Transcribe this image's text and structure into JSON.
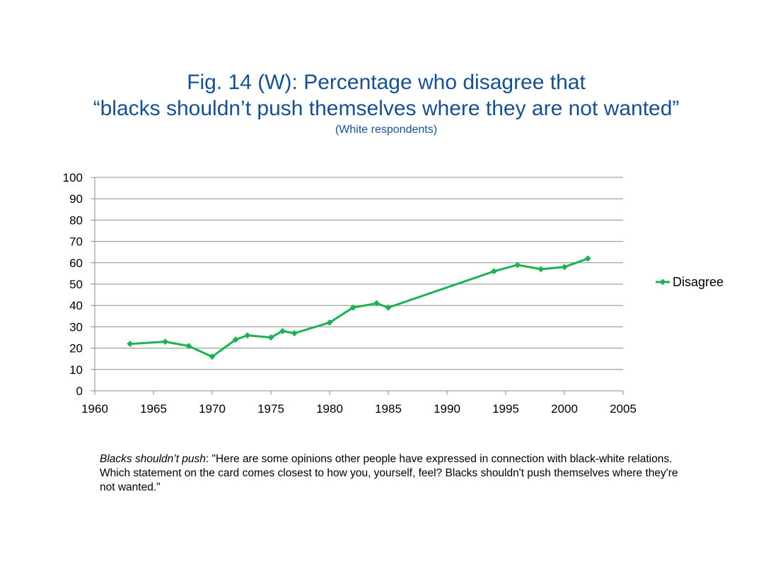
{
  "title": {
    "line1": "Fig. 14 (W): Percentage who disagree that",
    "line2": "“blacks shouldn’t push themselves where they are not wanted”",
    "subtitle": "(White respondents)"
  },
  "colors": {
    "title": "#17508f",
    "series": "#1db154",
    "grid": "#8c8c8c",
    "axis": "#8c8c8c"
  },
  "chart_data": {
    "type": "line",
    "title": "Fig. 14 (W): Percentage who disagree that “blacks shouldn’t push themselves where they are not wanted”",
    "subtitle": "(White respondents)",
    "xlabel": "",
    "ylabel": "",
    "xlim": [
      1960,
      2005
    ],
    "ylim": [
      0,
      100
    ],
    "x_ticks": [
      1960,
      1965,
      1970,
      1975,
      1980,
      1985,
      1990,
      1995,
      2000,
      2005
    ],
    "y_ticks": [
      0,
      10,
      20,
      30,
      40,
      50,
      60,
      70,
      80,
      90,
      100
    ],
    "grid": true,
    "legend_position": "right",
    "series": [
      {
        "name": "Disagree",
        "marker": "diamond",
        "x": [
          1963,
          1966,
          1968,
          1970,
          1972,
          1973,
          1975,
          1976,
          1977,
          1980,
          1982,
          1984,
          1985,
          1994,
          1996,
          1998,
          2000,
          2002
        ],
        "y": [
          22,
          23,
          21,
          16,
          24,
          26,
          25,
          28,
          27,
          32,
          39,
          41,
          39,
          56,
          59,
          57,
          58,
          62
        ]
      }
    ]
  },
  "footnote": {
    "lead": "Blacks shouldn’t push",
    "text": ":  \"Here are some opinions other people have expressed in connection with black-white relations. Which statement on the card comes closest to how you, yourself, feel? Blacks shouldn't push themselves where they're not wanted.\""
  }
}
